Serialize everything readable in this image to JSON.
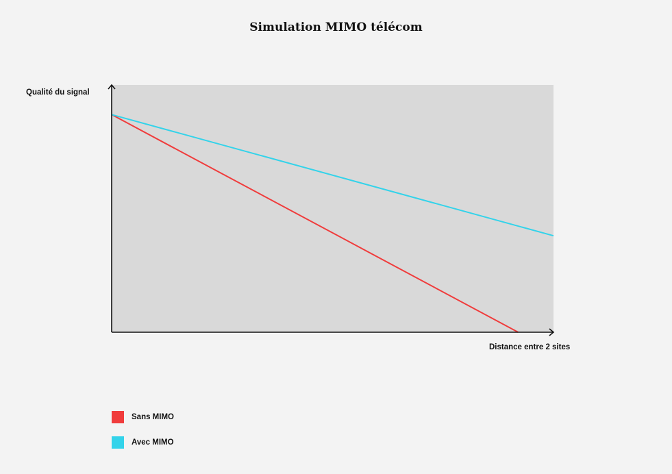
{
  "chart_data": {
    "type": "line",
    "title": "Simulation MIMO télécom",
    "xlabel": "Distance entre 2 sites",
    "ylabel": "Qualité du signal",
    "x": [
      0,
      1
    ],
    "xlim": [
      0,
      1
    ],
    "ylim": [
      0,
      1
    ],
    "grid": false,
    "legend_position": "bottom-left",
    "plot_background": "#d9d9d9",
    "page_background": "#f3f3f3",
    "series": [
      {
        "name": "Sans MIMO",
        "color": "#f03c3c",
        "x": [
          0,
          0.92
        ],
        "y": [
          0.88,
          0
        ]
      },
      {
        "name": "Avec MIMO",
        "color": "#33d3ea",
        "x": [
          0,
          1
        ],
        "y": [
          0.88,
          0.39
        ]
      }
    ]
  }
}
